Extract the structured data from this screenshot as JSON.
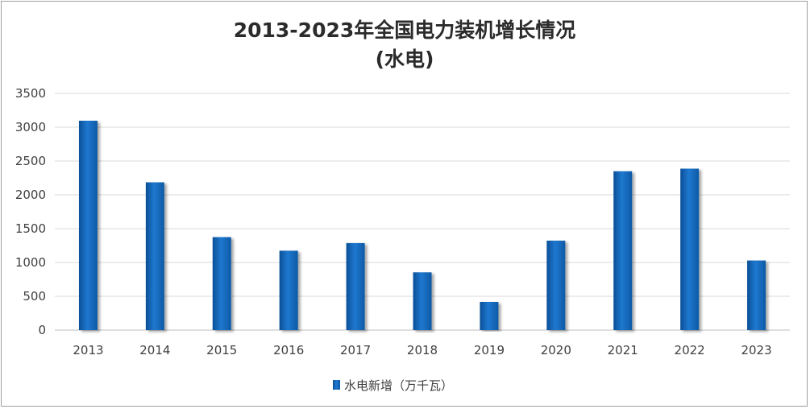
{
  "chart_data": {
    "type": "bar",
    "title": "2013-2023年全国电力装机增长情况",
    "subtitle": "(水电)",
    "xlabel": "",
    "ylabel": "",
    "categories": [
      "2013",
      "2014",
      "2015",
      "2016",
      "2017",
      "2018",
      "2019",
      "2020",
      "2021",
      "2022",
      "2023"
    ],
    "series": [
      {
        "name": "水电新增（万千瓦）",
        "values": [
          3096,
          2185,
          1375,
          1174,
          1287,
          854,
          417,
          1323,
          2349,
          2387,
          1029
        ],
        "color": "#1f6fc1"
      }
    ],
    "ylim": [
      0,
      3500
    ],
    "yticks": [
      "0",
      "500",
      "1000",
      "1500",
      "2000",
      "2500",
      "3000",
      "3500"
    ],
    "grid": true,
    "legend_position": "bottom"
  }
}
